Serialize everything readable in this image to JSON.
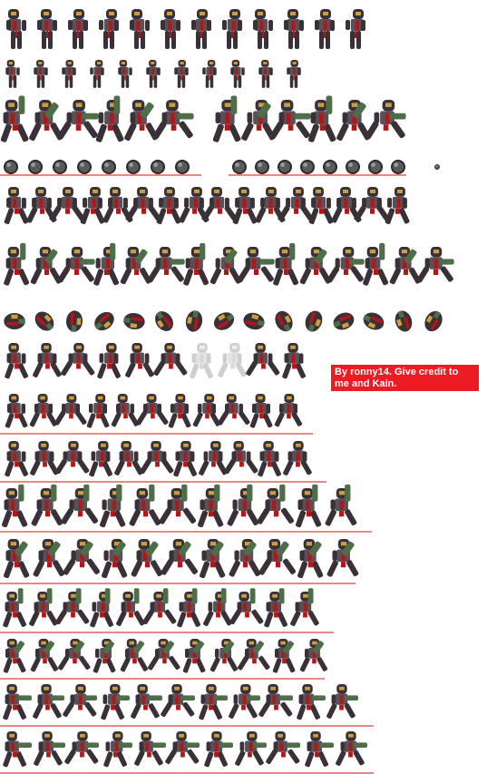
{
  "sheet": {
    "type": "sprite-sheet",
    "character": "armored soldier with arm cannon",
    "sprite_rows": [
      {
        "row": 1,
        "content": "standing / idle poses",
        "frames": 12,
        "red_guide_line": false
      },
      {
        "row": 2,
        "content": "crouching / damage poses",
        "frames": 11,
        "red_guide_line": false
      },
      {
        "row": 3,
        "content": "aiming cannon poses",
        "frames": 12,
        "red_guide_line": false
      },
      {
        "row": 4,
        "content": "charge shot orbs",
        "frames": 17,
        "red_guide_line": true
      },
      {
        "row": 5,
        "content": "jumping poses",
        "frames": 16,
        "red_guide_line": false
      },
      {
        "row": 6,
        "content": "jumping with cannon",
        "frames": 15,
        "red_guide_line": false
      },
      {
        "row": 7,
        "content": "spinning / rolling",
        "frames": 15,
        "red_guide_line": false
      },
      {
        "row": 8,
        "content": "falling / hurt poses",
        "frames": 10,
        "red_guide_line": false
      },
      {
        "row": 9,
        "content": "running cycle",
        "frames": 11,
        "red_guide_line": true
      },
      {
        "row": 10,
        "content": "running cycle (cannon down)",
        "frames": 11,
        "red_guide_line": true
      },
      {
        "row": 11,
        "content": "running cycle (cannon up)",
        "frames": 11,
        "red_guide_line": true
      },
      {
        "row": 12,
        "content": "running cycle (cannon diagonal)",
        "frames": 11,
        "red_guide_line": true
      },
      {
        "row": 13,
        "content": "running cycle (cannon raised)",
        "frames": 11,
        "red_guide_line": true
      },
      {
        "row": 14,
        "content": "running cycle (cannon diagonal 2)",
        "frames": 11,
        "red_guide_line": true
      },
      {
        "row": 15,
        "content": "running cycle (cannon forward)",
        "frames": 11,
        "red_guide_line": true
      },
      {
        "row": 16,
        "content": "running cycle (cannon forward 2)",
        "frames": 11,
        "red_guide_line": true
      }
    ]
  },
  "credit": {
    "line1": "By ronny14. Give credit to",
    "line2": "me and Kain.",
    "background": "#ed1c24",
    "text_color": "#ffffff"
  },
  "palette": {
    "armor_dark": "#3a3038",
    "armor_mid": "#5a5058",
    "armor_light": "#8a8088",
    "suit_red": "#b01818",
    "cannon_green": "#4e6e4a",
    "visor_gold": "#c8a040",
    "guide_line": "#d01010",
    "ghost_frame": "#cfcfcf"
  }
}
